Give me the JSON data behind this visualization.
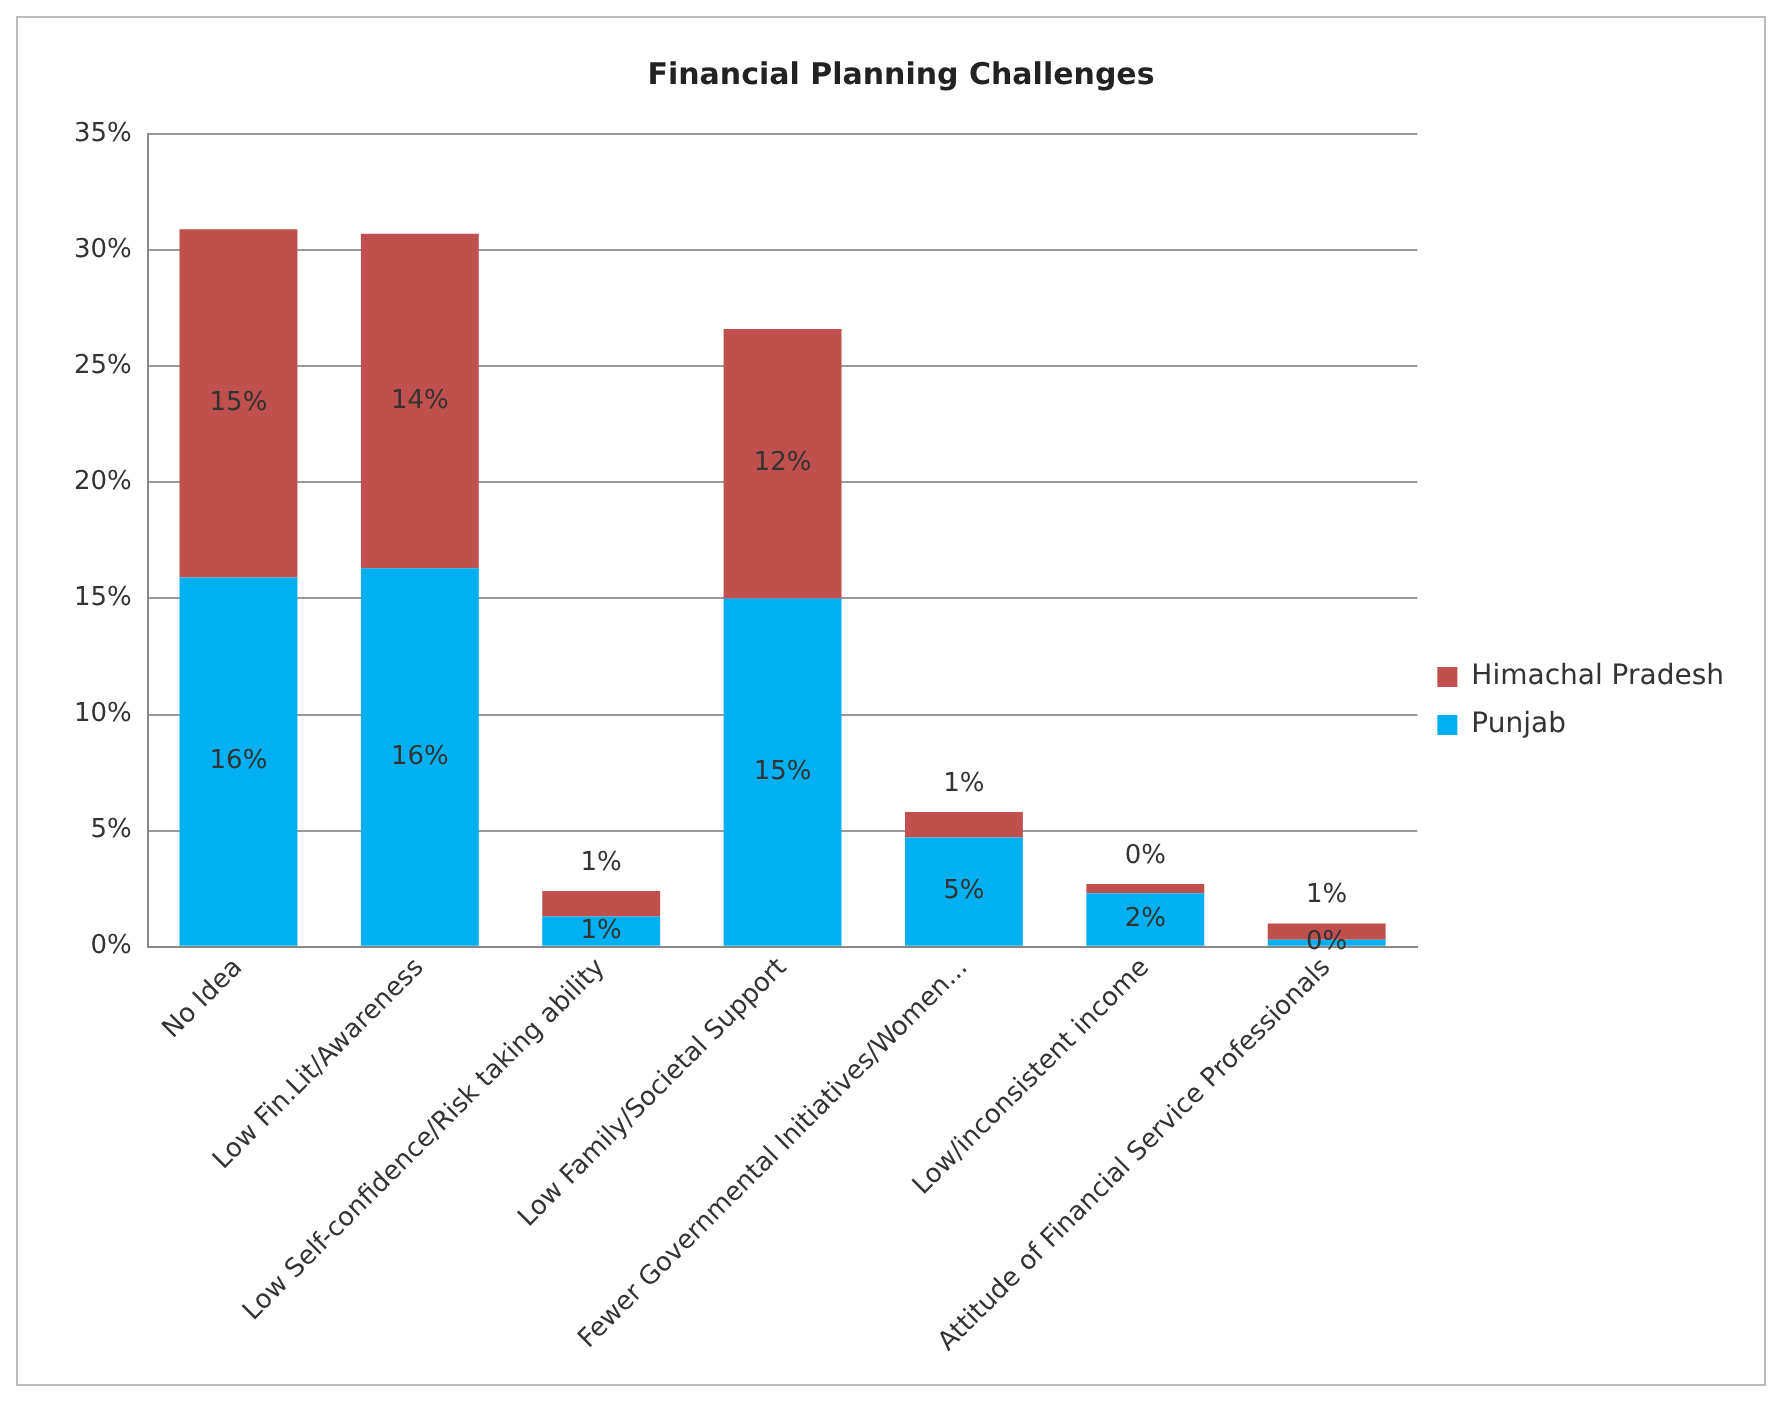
{
  "chart_data": {
    "type": "bar",
    "title": "Financial Planning Challenges",
    "stacked": true,
    "categories": [
      "No Idea",
      "Low Fin.Lit/Awareness",
      "Low Self-confidence/Risk taking ability",
      "Low Family/Societal Support",
      "Fewer Governmental Initiatives/Women...",
      "Low/inconsistent income",
      "Attitude of Financial Service Professionals"
    ],
    "series": [
      {
        "name": "Punjab",
        "color": "#00b0f0",
        "values": [
          15.9,
          16.3,
          1.3,
          15.0,
          4.7,
          2.3,
          0.3
        ],
        "value_labels": [
          "16%",
          "16%",
          "1%",
          "15%",
          "5%",
          "2%",
          "0%"
        ]
      },
      {
        "name": "Himachal Pradesh",
        "color": "#c0504d",
        "values": [
          15.0,
          14.4,
          1.1,
          11.6,
          1.1,
          0.4,
          0.7
        ],
        "value_labels": [
          "15%",
          "14%",
          "1%",
          "12%",
          "1%",
          "0%",
          "1%"
        ]
      }
    ],
    "ylim": [
      0,
      35
    ],
    "yticks": [
      {
        "value": 0,
        "label": "0%"
      },
      {
        "value": 5,
        "label": "5%"
      },
      {
        "value": 10,
        "label": "10%"
      },
      {
        "value": 15,
        "label": "15%"
      },
      {
        "value": 20,
        "label": "20%"
      },
      {
        "value": 25,
        "label": "25%"
      },
      {
        "value": 30,
        "label": "30%"
      },
      {
        "value": 35,
        "label": "35%"
      }
    ],
    "grid": "y",
    "legend": "right"
  }
}
